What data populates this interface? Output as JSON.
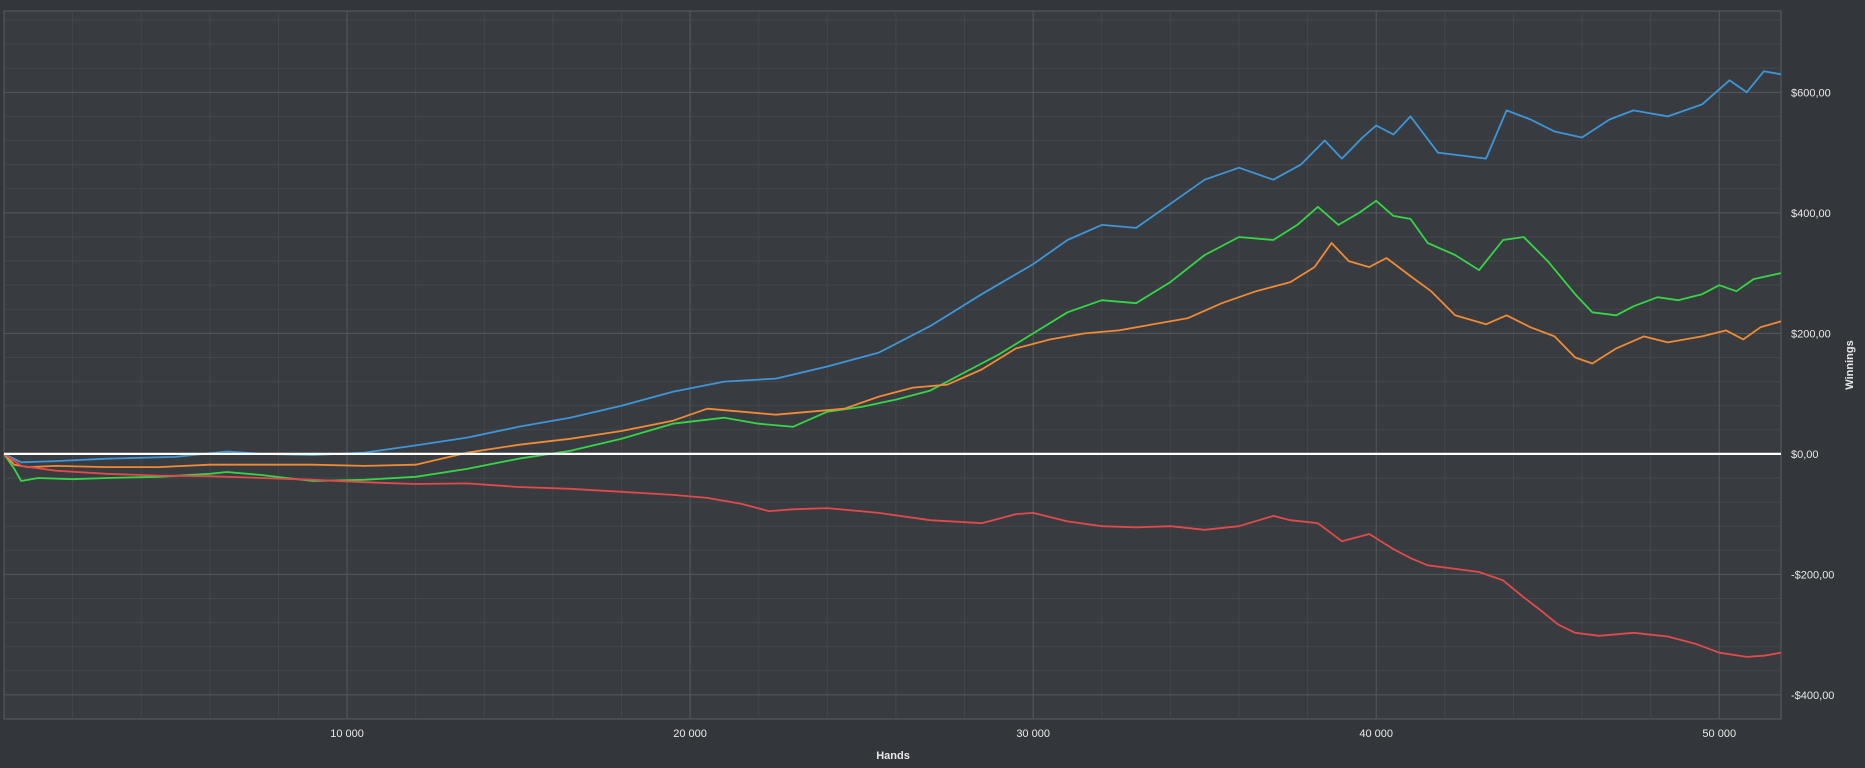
{
  "chart_data": {
    "type": "line",
    "title": "",
    "xlabel": "Hands",
    "ylabel": "Winnings",
    "xlim": [
      0,
      51800
    ],
    "ylim": [
      -440,
      735
    ],
    "x_ticks": [
      {
        "value": 10000,
        "label": "10 000"
      },
      {
        "value": 20000,
        "label": "20 000"
      },
      {
        "value": 30000,
        "label": "30 000"
      },
      {
        "value": 40000,
        "label": "40 000"
      },
      {
        "value": 50000,
        "label": "50 000"
      }
    ],
    "y_ticks": [
      {
        "value": 600,
        "label": "$600,00"
      },
      {
        "value": 400,
        "label": "$400,00"
      },
      {
        "value": 200,
        "label": "$200,00"
      },
      {
        "value": 0,
        "label": "$0,00"
      },
      {
        "value": -200,
        "label": "-$200,00"
      },
      {
        "value": -400,
        "label": "-$400,00"
      }
    ],
    "grid": true,
    "legend": "none",
    "colors": {
      "background": "#33373b",
      "plot_background": "#383c40",
      "grid_major": "#55595e",
      "grid_minor": "#43474b",
      "zero_line": "#ffffff",
      "text": "#e8e8e8"
    },
    "series": [
      {
        "color": "#3d96d8",
        "points": [
          [
            0,
            0
          ],
          [
            500,
            -14
          ],
          [
            1500,
            -12
          ],
          [
            3000,
            -8
          ],
          [
            5000,
            -5
          ],
          [
            6500,
            4
          ],
          [
            7500,
            0
          ],
          [
            9000,
            -2
          ],
          [
            10500,
            2
          ],
          [
            12000,
            14
          ],
          [
            13500,
            27
          ],
          [
            15000,
            45
          ],
          [
            16500,
            60
          ],
          [
            18000,
            80
          ],
          [
            19500,
            103
          ],
          [
            21000,
            120
          ],
          [
            22500,
            125
          ],
          [
            24000,
            145
          ],
          [
            25500,
            168
          ],
          [
            27000,
            212
          ],
          [
            28500,
            265
          ],
          [
            30000,
            315
          ],
          [
            31000,
            355
          ],
          [
            32000,
            380
          ],
          [
            33000,
            375
          ],
          [
            34000,
            415
          ],
          [
            35000,
            455
          ],
          [
            36000,
            475
          ],
          [
            37000,
            455
          ],
          [
            37800,
            480
          ],
          [
            38500,
            520
          ],
          [
            39000,
            490
          ],
          [
            39600,
            525
          ],
          [
            40000,
            545
          ],
          [
            40500,
            530
          ],
          [
            41000,
            560
          ],
          [
            41800,
            500
          ],
          [
            42500,
            495
          ],
          [
            43200,
            490
          ],
          [
            43800,
            570
          ],
          [
            44500,
            555
          ],
          [
            45200,
            535
          ],
          [
            46000,
            525
          ],
          [
            46800,
            555
          ],
          [
            47500,
            570
          ],
          [
            48500,
            560
          ],
          [
            49500,
            580
          ],
          [
            50300,
            620
          ],
          [
            50800,
            600
          ],
          [
            51300,
            635
          ],
          [
            51800,
            630
          ]
        ]
      },
      {
        "color": "#34d645",
        "points": [
          [
            0,
            0
          ],
          [
            300,
            -25
          ],
          [
            500,
            -45
          ],
          [
            1000,
            -40
          ],
          [
            2000,
            -42
          ],
          [
            3000,
            -40
          ],
          [
            4500,
            -38
          ],
          [
            6000,
            -33
          ],
          [
            6500,
            -30
          ],
          [
            7500,
            -35
          ],
          [
            9000,
            -45
          ],
          [
            10500,
            -43
          ],
          [
            12000,
            -38
          ],
          [
            13500,
            -25
          ],
          [
            15000,
            -8
          ],
          [
            16500,
            5
          ],
          [
            18000,
            25
          ],
          [
            19500,
            50
          ],
          [
            21000,
            60
          ],
          [
            22000,
            50
          ],
          [
            23000,
            45
          ],
          [
            24000,
            70
          ],
          [
            25000,
            78
          ],
          [
            26000,
            90
          ],
          [
            27000,
            105
          ],
          [
            28000,
            135
          ],
          [
            29000,
            165
          ],
          [
            30000,
            200
          ],
          [
            31000,
            235
          ],
          [
            32000,
            255
          ],
          [
            33000,
            250
          ],
          [
            34000,
            285
          ],
          [
            35000,
            330
          ],
          [
            36000,
            360
          ],
          [
            37000,
            355
          ],
          [
            37700,
            380
          ],
          [
            38300,
            410
          ],
          [
            38900,
            380
          ],
          [
            39500,
            400
          ],
          [
            40000,
            420
          ],
          [
            40500,
            395
          ],
          [
            41000,
            390
          ],
          [
            41500,
            350
          ],
          [
            42300,
            330
          ],
          [
            43000,
            305
          ],
          [
            43700,
            355
          ],
          [
            44300,
            360
          ],
          [
            45000,
            320
          ],
          [
            45800,
            265
          ],
          [
            46300,
            235
          ],
          [
            47000,
            230
          ],
          [
            47500,
            245
          ],
          [
            48200,
            260
          ],
          [
            48800,
            255
          ],
          [
            49500,
            265
          ],
          [
            50000,
            280
          ],
          [
            50500,
            270
          ],
          [
            51000,
            290
          ],
          [
            51800,
            300
          ]
        ]
      },
      {
        "color": "#f08a34",
        "points": [
          [
            0,
            0
          ],
          [
            300,
            -18
          ],
          [
            700,
            -22
          ],
          [
            1500,
            -20
          ],
          [
            3000,
            -22
          ],
          [
            4500,
            -22
          ],
          [
            6000,
            -18
          ],
          [
            7500,
            -18
          ],
          [
            9000,
            -18
          ],
          [
            10500,
            -20
          ],
          [
            12000,
            -18
          ],
          [
            13500,
            2
          ],
          [
            15000,
            15
          ],
          [
            16500,
            25
          ],
          [
            18000,
            38
          ],
          [
            19500,
            55
          ],
          [
            20500,
            75
          ],
          [
            21500,
            70
          ],
          [
            22500,
            65
          ],
          [
            23500,
            70
          ],
          [
            24500,
            75
          ],
          [
            25500,
            95
          ],
          [
            26500,
            110
          ],
          [
            27500,
            115
          ],
          [
            28500,
            140
          ],
          [
            29500,
            175
          ],
          [
            30500,
            190
          ],
          [
            31500,
            200
          ],
          [
            32500,
            205
          ],
          [
            33500,
            215
          ],
          [
            34500,
            225
          ],
          [
            35500,
            250
          ],
          [
            36500,
            270
          ],
          [
            37500,
            285
          ],
          [
            38200,
            310
          ],
          [
            38700,
            350
          ],
          [
            39200,
            320
          ],
          [
            39800,
            310
          ],
          [
            40300,
            325
          ],
          [
            41000,
            295
          ],
          [
            41600,
            270
          ],
          [
            42300,
            230
          ],
          [
            43200,
            215
          ],
          [
            43800,
            230
          ],
          [
            44500,
            210
          ],
          [
            45200,
            195
          ],
          [
            45800,
            160
          ],
          [
            46300,
            150
          ],
          [
            47000,
            175
          ],
          [
            47800,
            195
          ],
          [
            48500,
            185
          ],
          [
            49500,
            195
          ],
          [
            50200,
            205
          ],
          [
            50700,
            190
          ],
          [
            51200,
            210
          ],
          [
            51800,
            220
          ]
        ]
      },
      {
        "color": "#e24a4a",
        "points": [
          [
            0,
            0
          ],
          [
            500,
            -20
          ],
          [
            1500,
            -28
          ],
          [
            3000,
            -33
          ],
          [
            4500,
            -36
          ],
          [
            6000,
            -37
          ],
          [
            7500,
            -40
          ],
          [
            9000,
            -43
          ],
          [
            10500,
            -47
          ],
          [
            12000,
            -50
          ],
          [
            13500,
            -49
          ],
          [
            15000,
            -55
          ],
          [
            16500,
            -58
          ],
          [
            18000,
            -63
          ],
          [
            19500,
            -68
          ],
          [
            20500,
            -73
          ],
          [
            21500,
            -83
          ],
          [
            22300,
            -95
          ],
          [
            23000,
            -92
          ],
          [
            24000,
            -90
          ],
          [
            25500,
            -98
          ],
          [
            27000,
            -110
          ],
          [
            28500,
            -115
          ],
          [
            29500,
            -100
          ],
          [
            30000,
            -98
          ],
          [
            31000,
            -112
          ],
          [
            32000,
            -120
          ],
          [
            33000,
            -122
          ],
          [
            34000,
            -120
          ],
          [
            35000,
            -126
          ],
          [
            36000,
            -120
          ],
          [
            37000,
            -103
          ],
          [
            37500,
            -110
          ],
          [
            38300,
            -115
          ],
          [
            39000,
            -145
          ],
          [
            39800,
            -133
          ],
          [
            40500,
            -158
          ],
          [
            41000,
            -173
          ],
          [
            41500,
            -185
          ],
          [
            42200,
            -190
          ],
          [
            43000,
            -196
          ],
          [
            43700,
            -210
          ],
          [
            44300,
            -238
          ],
          [
            44800,
            -260
          ],
          [
            45300,
            -283
          ],
          [
            45800,
            -297
          ],
          [
            46500,
            -302
          ],
          [
            47500,
            -297
          ],
          [
            48500,
            -303
          ],
          [
            49300,
            -315
          ],
          [
            50000,
            -330
          ],
          [
            50800,
            -337
          ],
          [
            51300,
            -335
          ],
          [
            51800,
            -330
          ]
        ]
      }
    ]
  }
}
